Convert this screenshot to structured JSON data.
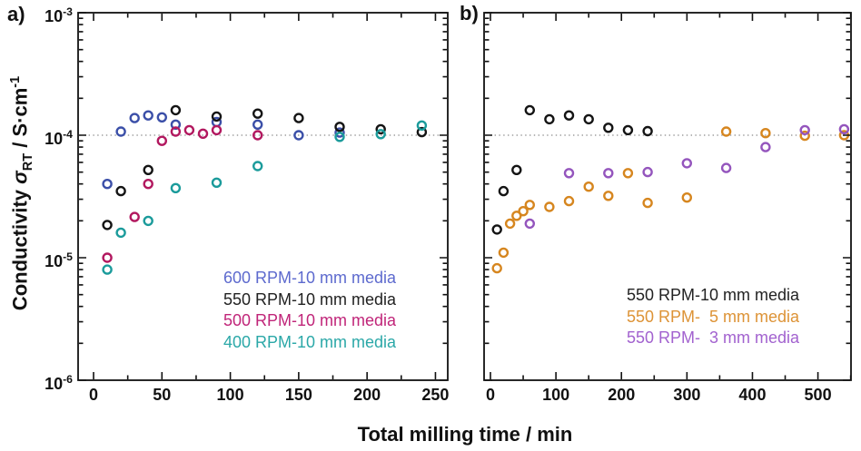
{
  "figure": {
    "panel_a_label": "a)",
    "panel_b_label": "b)",
    "xlabel": "Total milling time / min",
    "ylabel": {
      "prefix": "Conductivity ",
      "sigma": "σ",
      "subscript": "RT",
      "middle": " / S·cm",
      "superscript": "-1"
    },
    "y_axis": {
      "base": "10",
      "exponents": [
        -3,
        -4,
        -5,
        -6
      ]
    },
    "background": "#ffffff",
    "frame_color": "#111111",
    "reference_line_color": "#8a8a8a"
  },
  "chart_data": [
    {
      "type": "scatter",
      "panel": "a",
      "x_ticks": [
        0,
        50,
        100,
        150,
        200,
        250
      ],
      "x_minor_step": 25,
      "y_ticks_exp": [
        -3,
        -4,
        -5,
        -6
      ],
      "ylim_log10": [
        -6,
        -3
      ],
      "grid": false,
      "reference_line": 0.0001,
      "legend_position": "lower-right-inside",
      "series": [
        {
          "name": "600 RPM-10 mm media",
          "color": "#3b4fa8",
          "legend_color": "#5d6ace",
          "marker": "open-circle",
          "points": [
            [
              10,
              4e-05
            ],
            [
              20,
              0.000107
            ],
            [
              30,
              0.000138
            ],
            [
              40,
              0.000145
            ],
            [
              50,
              0.00014
            ],
            [
              60,
              0.000122
            ],
            [
              90,
              0.000128
            ],
            [
              120,
              0.000122
            ],
            [
              150,
              0.0001
            ],
            [
              180,
              0.000105
            ]
          ]
        },
        {
          "name": "550 RPM-10 mm media",
          "color": "#141414",
          "legend_color": "#222222",
          "marker": "open-circle",
          "points": [
            [
              10,
              1.85e-05
            ],
            [
              20,
              3.5e-05
            ],
            [
              40,
              5.2e-05
            ],
            [
              60,
              0.00016
            ],
            [
              90,
              0.000142
            ],
            [
              120,
              0.00015
            ],
            [
              150,
              0.000138
            ],
            [
              180,
              0.000117
            ],
            [
              210,
              0.000112
            ],
            [
              240,
              0.000106
            ]
          ]
        },
        {
          "name": "500 RPM-10 mm media",
          "color": "#b2185f",
          "legend_color": "#c02579",
          "marker": "open-circle",
          "points": [
            [
              10,
              1e-05
            ],
            [
              30,
              2.15e-05
            ],
            [
              40,
              4e-05
            ],
            [
              50,
              9e-05
            ],
            [
              60,
              0.000107
            ],
            [
              70,
              0.00011
            ],
            [
              80,
              0.000103
            ],
            [
              90,
              0.00011
            ],
            [
              120,
              0.0001
            ]
          ]
        },
        {
          "name": "400 RPM-10 mm media",
          "color": "#1b9b9b",
          "legend_color": "#2ba8a8",
          "marker": "open-circle",
          "points": [
            [
              10,
              8e-06
            ],
            [
              20,
              1.6e-05
            ],
            [
              40,
              2e-05
            ],
            [
              60,
              3.7e-05
            ],
            [
              90,
              4.1e-05
            ],
            [
              120,
              5.6e-05
            ],
            [
              180,
              9.7e-05
            ],
            [
              210,
              0.000102
            ],
            [
              240,
              0.00012
            ]
          ]
        }
      ]
    },
    {
      "type": "scatter",
      "panel": "b",
      "x_ticks": [
        0,
        100,
        200,
        300,
        400,
        500
      ],
      "x_minor_step": 50,
      "y_ticks_exp": [
        -3,
        -4,
        -5,
        -6
      ],
      "ylim_log10": [
        -6,
        -3
      ],
      "grid": false,
      "reference_line": 0.0001,
      "legend_position": "lower-right-inside",
      "series": [
        {
          "name": "550 RPM-10 mm media",
          "color": "#141414",
          "legend_color": "#222222",
          "marker": "open-circle",
          "points": [
            [
              10,
              1.7e-05
            ],
            [
              20,
              3.5e-05
            ],
            [
              40,
              5.2e-05
            ],
            [
              60,
              0.00016
            ],
            [
              90,
              0.000135
            ],
            [
              120,
              0.000145
            ],
            [
              150,
              0.000135
            ],
            [
              180,
              0.000115
            ],
            [
              210,
              0.00011
            ],
            [
              240,
              0.000108
            ]
          ]
        },
        {
          "name": "550 RPM-  5 mm media",
          "color": "#d6861f",
          "legend_color": "#dd9336",
          "marker": "open-circle",
          "points": [
            [
              10,
              8.2e-06
            ],
            [
              20,
              1.1e-05
            ],
            [
              30,
              1.9e-05
            ],
            [
              40,
              2.2e-05
            ],
            [
              50,
              2.4e-05
            ],
            [
              60,
              2.7e-05
            ],
            [
              90,
              2.6e-05
            ],
            [
              120,
              2.9e-05
            ],
            [
              150,
              3.8e-05
            ],
            [
              180,
              3.2e-05
            ],
            [
              210,
              4.9e-05
            ],
            [
              240,
              2.8e-05
            ],
            [
              300,
              3.1e-05
            ],
            [
              360,
              0.000107
            ],
            [
              420,
              0.000104
            ],
            [
              480,
              9.9e-05
            ],
            [
              540,
              0.0001
            ]
          ]
        },
        {
          "name": "550 RPM-  3 mm media",
          "color": "#9455bd",
          "legend_color": "#a262cf",
          "marker": "open-circle",
          "points": [
            [
              60,
              1.9e-05
            ],
            [
              120,
              4.9e-05
            ],
            [
              180,
              4.9e-05
            ],
            [
              240,
              5e-05
            ],
            [
              300,
              5.9e-05
            ],
            [
              360,
              5.4e-05
            ],
            [
              420,
              8e-05
            ],
            [
              480,
              0.00011
            ],
            [
              540,
              0.000112
            ]
          ]
        }
      ]
    }
  ]
}
